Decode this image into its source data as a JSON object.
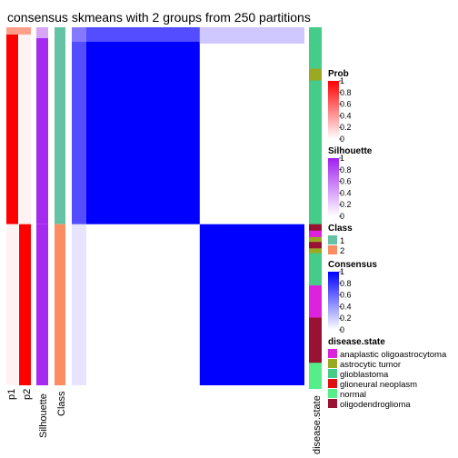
{
  "title": "consensus skmeans with 2 groups from 250 partitions",
  "colors": {
    "prob_high": "#ff0000",
    "silhouette_high": "#a020f0",
    "consensus_high": "#0000ff",
    "class_1": "#66c2a5",
    "class_2": "#fc8d62",
    "heat_mid": "#e7e4ff"
  },
  "columns": {
    "p1": "p1",
    "p2": "p2",
    "silhouette": "Silhouette",
    "class": "Class",
    "disease_state": "disease.state"
  },
  "legends": {
    "prob": {
      "title": "Prob",
      "ticks": [
        "1",
        "0.8",
        "0.6",
        "0.4",
        "0.2",
        "0"
      ]
    },
    "silhouette": {
      "title": "Silhouette",
      "ticks": [
        "1",
        "0.8",
        "0.6",
        "0.4",
        "0.2",
        "0"
      ]
    },
    "class": {
      "title": "Class",
      "items": [
        {
          "label": "1",
          "color": "#66c2a5"
        },
        {
          "label": "2",
          "color": "#fc8d62"
        }
      ]
    },
    "consensus": {
      "title": "Consensus",
      "ticks": [
        "1",
        "0.8",
        "0.6",
        "0.4",
        "0.2",
        "0"
      ]
    },
    "disease_state": {
      "title": "disease.state",
      "items": [
        {
          "label": "anaplastic oligoastrocytoma",
          "color": "#dd22dd"
        },
        {
          "label": "astrocytic tumor",
          "color": "#99aa22"
        },
        {
          "label": "glioblastoma",
          "color": "#44cc88"
        },
        {
          "label": "glioneural neoplasm",
          "color": "#dd1111"
        },
        {
          "label": "normal",
          "color": "#55ee88"
        },
        {
          "label": "oligodendroglioma",
          "color": "#991133"
        }
      ]
    }
  },
  "chart_data": {
    "type": "heatmap",
    "title": "consensus skmeans with 2 groups from 250 partitions",
    "groups": [
      {
        "class": 1,
        "sample_fraction": 0.55,
        "p1": 1.0,
        "p2": 0.0,
        "silhouette": 0.95,
        "consensus_within": 1.0,
        "consensus_to_other_group": 0.08,
        "disease_state_bands": [
          {
            "label": "glioblastoma",
            "fraction": 0.21
          },
          {
            "label": "astrocytic tumor",
            "fraction": 0.06
          },
          {
            "label": "glioblastoma",
            "fraction": 0.73
          }
        ]
      },
      {
        "class": 2,
        "sample_fraction": 0.45,
        "p1": 0.0,
        "p2": 1.0,
        "silhouette": 0.95,
        "consensus_within": 1.0,
        "consensus_to_other_group": 0.0,
        "disease_state_bands": [
          {
            "label": "oligodendroglioma",
            "fraction": 0.04
          },
          {
            "label": "anaplastic oligoastrocytoma",
            "fraction": 0.04
          },
          {
            "label": "astrocytic tumor",
            "fraction": 0.03
          },
          {
            "label": "oligodendroglioma",
            "fraction": 0.04
          },
          {
            "label": "astrocytic tumor",
            "fraction": 0.03
          },
          {
            "label": "glioblastoma",
            "fraction": 0.2
          },
          {
            "label": "anaplastic oligoastrocytoma",
            "fraction": 0.2
          },
          {
            "label": "oligodendroglioma",
            "fraction": 0.28
          },
          {
            "label": "normal",
            "fraction": 0.16
          }
        ]
      }
    ]
  }
}
